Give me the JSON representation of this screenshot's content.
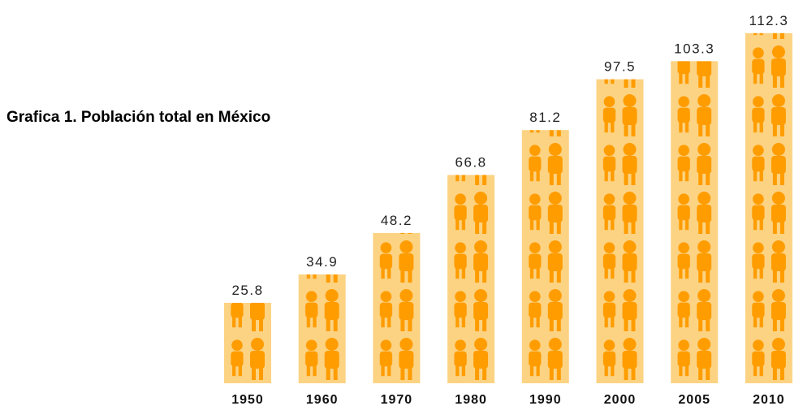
{
  "chart_data": {
    "type": "pictograph",
    "title": "Grafica 1. Población total en México",
    "categories": [
      "1950",
      "1960",
      "1970",
      "1980",
      "1990",
      "2000",
      "2005",
      "2010"
    ],
    "values": [
      25.8,
      34.9,
      48.2,
      66.8,
      81.2,
      97.5,
      103.3,
      112.3
    ],
    "color": "#fcd383",
    "icon_color": "#ff9c00"
  }
}
